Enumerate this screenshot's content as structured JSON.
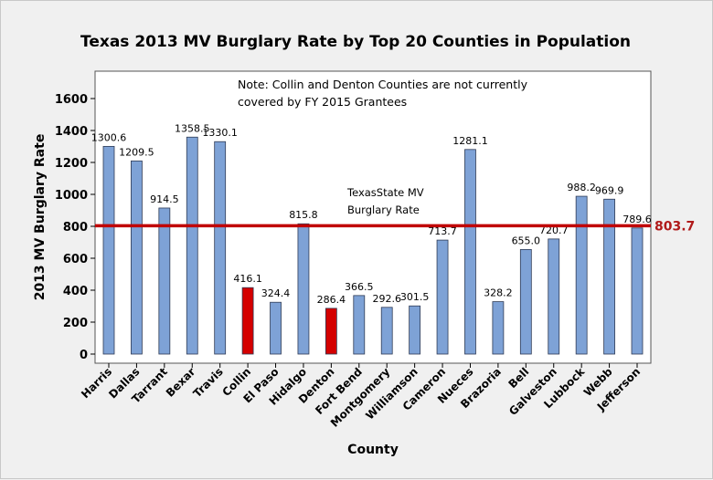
{
  "chart_data": {
    "type": "bar",
    "title": "Texas 2013 MV Burglary Rate by Top 20 Counties in Population",
    "xlabel": "County",
    "ylabel": "2013 MV Burglary Rate",
    "ylim": [
      0,
      1800
    ],
    "yticks": [
      "0",
      "200",
      "400",
      "600",
      "800",
      "1000",
      "1200",
      "1400",
      "1600"
    ],
    "ytick_values": [
      0,
      200,
      400,
      600,
      800,
      1000,
      1200,
      1400,
      1600
    ],
    "categories": [
      "Harris",
      "Dallas",
      "Tarrant",
      "Bexar",
      "Travis",
      "Collin",
      "El Paso",
      "Hidalgo",
      "Denton",
      "Fort Bend",
      "Montgomery",
      "Williamson",
      "Cameron",
      "Nueces",
      "Brazoria",
      "Bell",
      "Galveston",
      "Lubbock",
      "Webb",
      "Jefferson"
    ],
    "values": [
      1300.6,
      1209.5,
      914.5,
      1358.5,
      1330.1,
      416.1,
      324.4,
      815.8,
      286.4,
      366.5,
      292.6,
      301.5,
      713.7,
      1281.1,
      328.2,
      655.0,
      720.7,
      988.2,
      969.9,
      789.6
    ],
    "value_labels": [
      "1300.6",
      "1209.5",
      "914.5",
      "1358.5",
      "1330.1",
      "416.1",
      "324.4",
      "815.8",
      "286.4",
      "366.5",
      "292.6",
      "301.5",
      "713.7",
      "1281.1",
      "328.2",
      "655.0",
      "720.7",
      "988.2",
      "969.9",
      "789.6"
    ],
    "highlighted": [
      "Collin",
      "Denton"
    ],
    "reference_line": {
      "value": 803.7,
      "label": "803.7",
      "note_line1": "TexasState MV",
      "note_line2": "Burglary Rate"
    },
    "note_line1": "Note: Collin and Denton Counties are not currently",
    "note_line2": "covered by FY 2015 Grantees",
    "grid": false,
    "legend": "none"
  },
  "colors": {
    "bar": "#7ea2d6",
    "bar_highlight": "#d40000",
    "reference_line": "#c00000",
    "reference_label": "#b01a1a",
    "plot_background": "#ffffff",
    "figure_background": "#f0f0f0"
  }
}
